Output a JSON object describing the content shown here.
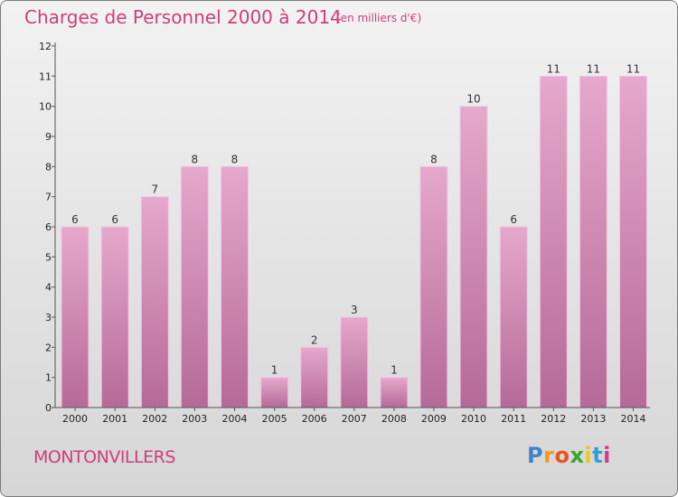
{
  "title": "Charges de Personnel 2000 à 2014",
  "subtitle": "(en milliers d'€)",
  "commune": "MONTONVILLERS",
  "logo_text": "Proxiti",
  "colors": {
    "title": "#cc3f7a",
    "bar_top": "#e6a8cc",
    "bar_bottom": "#b56a98"
  },
  "chart_data": {
    "type": "bar",
    "categories": [
      "2000",
      "2001",
      "2002",
      "2003",
      "2004",
      "2005",
      "2006",
      "2007",
      "2008",
      "2009",
      "2010",
      "2011",
      "2012",
      "2013",
      "2014"
    ],
    "values": [
      6,
      6,
      7,
      8,
      8,
      1,
      2,
      3,
      1,
      8,
      10,
      6,
      11,
      11,
      11
    ],
    "yticks": [
      0,
      1,
      2,
      3,
      4,
      5,
      6,
      7,
      8,
      9,
      10,
      11,
      12
    ],
    "ylim": [
      0,
      12
    ],
    "grid": false,
    "title": "Charges de Personnel 2000 à 2014",
    "xlabel": "",
    "ylabel": ""
  }
}
